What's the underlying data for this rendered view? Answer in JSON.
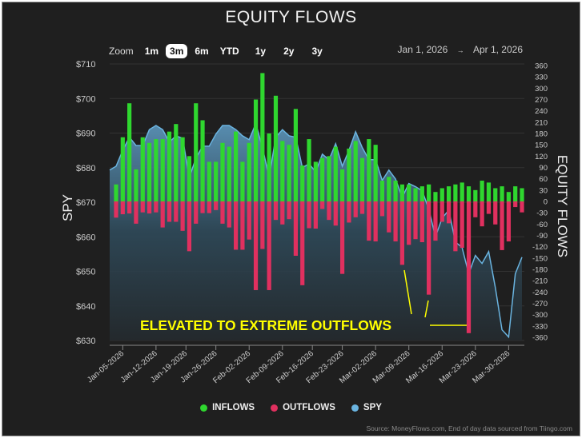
{
  "title": "EQUITY FLOWS",
  "toolbar": {
    "zoom_label": "Zoom",
    "buttons": [
      "1m",
      "3m",
      "6m",
      "YTD",
      "1y",
      "2y",
      "3y"
    ],
    "selected": "3m",
    "range_start": "Jan 1, 2026",
    "range_arrow": "→",
    "range_end": "Apr 1, 2026"
  },
  "legend": {
    "inflows": "INFLOWS",
    "outflows": "OUTFLOWS",
    "spy": "SPY"
  },
  "colors": {
    "inflows": "#2fd72f",
    "outflows": "#e0305f",
    "spy": "#6ab4e0",
    "background": "#1f1f1f",
    "annotation": "#ffff00"
  },
  "source": "Source: MoneyFlows.com, End of day data sourced from Tiingo.com",
  "annotation": "ELEVATED TO EXTREME OUTFLOWS",
  "chart_data": {
    "type": "bar",
    "title": "EQUITY FLOWS",
    "ylabel_left": "SPY",
    "ylabel_right": "EQUITY FLOWS",
    "ylim_left": [
      630,
      710
    ],
    "yticks_left": [
      "$710",
      "$700",
      "$690",
      "$680",
      "$670",
      "$660",
      "$650",
      "$640",
      "$630"
    ],
    "ylim_right": [
      -360,
      360
    ],
    "yticks_right": [
      "360",
      "330",
      "300",
      "270",
      "240",
      "210",
      "180",
      "150",
      "120",
      "90",
      "60",
      "30",
      "0",
      "-30",
      "-60",
      "-90",
      "-120",
      "-150",
      "-180",
      "-210",
      "-240",
      "-270",
      "-300",
      "-330",
      "-360"
    ],
    "xticks": [
      "Jan-05-2026",
      "Jan-12-2026",
      "Jan-19-2026",
      "Jan-26-2026",
      "Feb-02-2026",
      "Feb-09-2026",
      "Feb-16-2026",
      "Feb-23-2026",
      "Mar-02-2026",
      "Mar-09-2026",
      "Mar-16-2026",
      "Mar-23-2026",
      "Mar-30-2026"
    ],
    "x": [
      "2026-01-02",
      "2026-01-05",
      "2026-01-06",
      "2026-01-07",
      "2026-01-08",
      "2026-01-09",
      "2026-01-12",
      "2026-01-13",
      "2026-01-14",
      "2026-01-15",
      "2026-01-16",
      "2026-01-20",
      "2026-01-21",
      "2026-01-22",
      "2026-01-23",
      "2026-01-26",
      "2026-01-27",
      "2026-01-28",
      "2026-01-29",
      "2026-01-30",
      "2026-02-02",
      "2026-02-03",
      "2026-02-04",
      "2026-02-05",
      "2026-02-06",
      "2026-02-09",
      "2026-02-10",
      "2026-02-11",
      "2026-02-12",
      "2026-02-13",
      "2026-02-17",
      "2026-02-18",
      "2026-02-19",
      "2026-02-20",
      "2026-02-23",
      "2026-02-24",
      "2026-02-25",
      "2026-02-26",
      "2026-02-27",
      "2026-03-02",
      "2026-03-03",
      "2026-03-04",
      "2026-03-05",
      "2026-03-06",
      "2026-03-09",
      "2026-03-10",
      "2026-03-11",
      "2026-03-12",
      "2026-03-13",
      "2026-03-16",
      "2026-03-17",
      "2026-03-18",
      "2026-03-19",
      "2026-03-20",
      "2026-03-23",
      "2026-03-24",
      "2026-03-25",
      "2026-03-26",
      "2026-03-27",
      "2026-03-30",
      "2026-03-31",
      "2026-04-01"
    ],
    "series": [
      {
        "name": "INFLOWS",
        "type": "bar",
        "values": [
          45,
          170,
          260,
          85,
          170,
          155,
          165,
          165,
          185,
          205,
          170,
          120,
          260,
          215,
          105,
          105,
          155,
          145,
          185,
          105,
          155,
          270,
          340,
          180,
          280,
          160,
          150,
          245,
          95,
          165,
          105,
          115,
          120,
          145,
          85,
          140,
          160,
          115,
          165,
          150,
          55,
          65,
          55,
          45,
          45,
          35,
          40,
          45,
          25,
          35,
          40,
          45,
          50,
          40,
          30,
          55,
          50,
          35,
          40,
          25,
          40,
          35
        ]
      },
      {
        "name": "OUTFLOWS",
        "type": "bar",
        "values": [
          -43,
          -34,
          -32,
          -59,
          -29,
          -32,
          -29,
          -69,
          -54,
          -54,
          -78,
          -132,
          -59,
          -31,
          -31,
          -23,
          -59,
          -69,
          -128,
          -128,
          -101,
          -235,
          -126,
          -235,
          -49,
          -61,
          -47,
          -144,
          -222,
          -71,
          -72,
          -20,
          -49,
          -64,
          -192,
          -56,
          -42,
          -33,
          -104,
          -106,
          -39,
          -82,
          -106,
          -168,
          -115,
          -100,
          -108,
          -247,
          -104,
          -54,
          -58,
          -132,
          -123,
          -349,
          -42,
          -66,
          -33,
          -61,
          -129,
          -106,
          -15,
          -29
        ]
      },
      {
        "name": "SPY",
        "type": "area",
        "axis": "left",
        "values": [
          680.4,
          685,
          688.8,
          686.4,
          686.4,
          691,
          692.2,
          691,
          687.4,
          689.2,
          688.5,
          677.2,
          682.7,
          686.2,
          686.2,
          689.7,
          692.2,
          692.2,
          691,
          689.2,
          688.1,
          692.7,
          685.8,
          677.2,
          688.8,
          691,
          689.2,
          688.8,
          680,
          681.1,
          678.8,
          683.9,
          682.3,
          686.9,
          680.4,
          685,
          690.4,
          685.8,
          682.3,
          682.3,
          676.3,
          679.3,
          676.7,
          671.4,
          675.4,
          674.5,
          673.3,
          668,
          660,
          665.4,
          667.7,
          658.5,
          656.9,
          649.3,
          654.6,
          652.3,
          655.7,
          645.3,
          633.1,
          631,
          649.3,
          654.1
        ]
      }
    ],
    "grid": true,
    "legend_position": "bottom"
  }
}
